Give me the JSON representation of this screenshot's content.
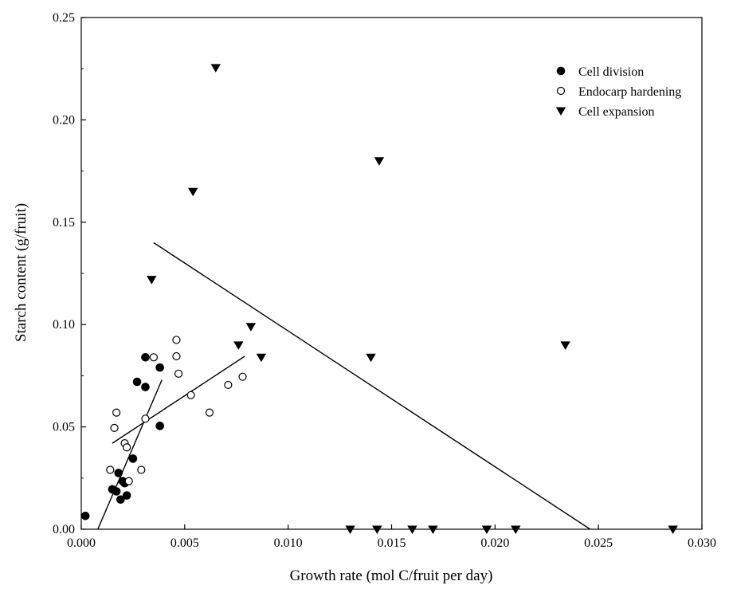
{
  "chart_data": {
    "type": "scatter",
    "title": "",
    "xlabel": "Growth rate (mol C/fruit per day)",
    "ylabel": "Starch content (g/fruit)",
    "xlim": [
      0,
      0.03
    ],
    "ylim": [
      0,
      0.25
    ],
    "x_ticks": [
      "0.000",
      "0.005",
      "0.010",
      "0.015",
      "0.020",
      "0.025",
      "0.030"
    ],
    "y_ticks": [
      "0.00",
      "0.05",
      "0.10",
      "0.15",
      "0.20",
      "0.25"
    ],
    "grid": false,
    "legend_position": "top-right",
    "series": [
      {
        "name": "Cell division",
        "marker": "filled-circle",
        "color": "#000000",
        "points": [
          [
            0.0002,
            0.0065
          ],
          [
            0.0015,
            0.0195
          ],
          [
            0.0017,
            0.0185
          ],
          [
            0.0018,
            0.0275
          ],
          [
            0.0019,
            0.0145
          ],
          [
            0.002,
            0.0235
          ],
          [
            0.0021,
            0.0225
          ],
          [
            0.0022,
            0.0165
          ],
          [
            0.0025,
            0.0345
          ],
          [
            0.0027,
            0.072
          ],
          [
            0.0031,
            0.084
          ],
          [
            0.0031,
            0.0695
          ],
          [
            0.0038,
            0.079
          ],
          [
            0.0038,
            0.0505
          ]
        ]
      },
      {
        "name": "Endocarp hardening",
        "marker": "open-circle",
        "color": "#000000",
        "points": [
          [
            0.0014,
            0.029
          ],
          [
            0.0016,
            0.0495
          ],
          [
            0.0017,
            0.057
          ],
          [
            0.0021,
            0.042
          ],
          [
            0.0022,
            0.04
          ],
          [
            0.0023,
            0.0235
          ],
          [
            0.0029,
            0.029
          ],
          [
            0.0031,
            0.054
          ],
          [
            0.0035,
            0.084
          ],
          [
            0.0046,
            0.0925
          ],
          [
            0.0046,
            0.0845
          ],
          [
            0.0047,
            0.076
          ],
          [
            0.0053,
            0.0655
          ],
          [
            0.0062,
            0.057
          ],
          [
            0.0071,
            0.0705
          ],
          [
            0.0078,
            0.0745
          ]
        ]
      },
      {
        "name": "Cell expansion",
        "marker": "filled-triangle-down",
        "color": "#000000",
        "points": [
          [
            0.0034,
            0.122
          ],
          [
            0.0054,
            0.165
          ],
          [
            0.0065,
            0.2255
          ],
          [
            0.0076,
            0.09
          ],
          [
            0.0082,
            0.099
          ],
          [
            0.0087,
            0.084
          ],
          [
            0.013,
            0.0
          ],
          [
            0.014,
            0.084
          ],
          [
            0.0143,
            0.0
          ],
          [
            0.0144,
            0.18
          ],
          [
            0.016,
            0.0
          ],
          [
            0.017,
            0.0
          ],
          [
            0.0196,
            0.0
          ],
          [
            0.021,
            0.0
          ],
          [
            0.0234,
            0.09
          ],
          [
            0.0286,
            0.0
          ]
        ]
      }
    ],
    "regression_lines": [
      {
        "series": "Cell division",
        "from": [
          0.0008,
          0.0
        ],
        "to": [
          0.0039,
          0.073
        ]
      },
      {
        "series": "Endocarp hardening",
        "from": [
          0.0015,
          0.042
        ],
        "to": [
          0.0079,
          0.0845
        ]
      },
      {
        "series": "Cell expansion",
        "from": [
          0.0035,
          0.14
        ],
        "to": [
          0.0246,
          0.0
        ]
      }
    ]
  }
}
